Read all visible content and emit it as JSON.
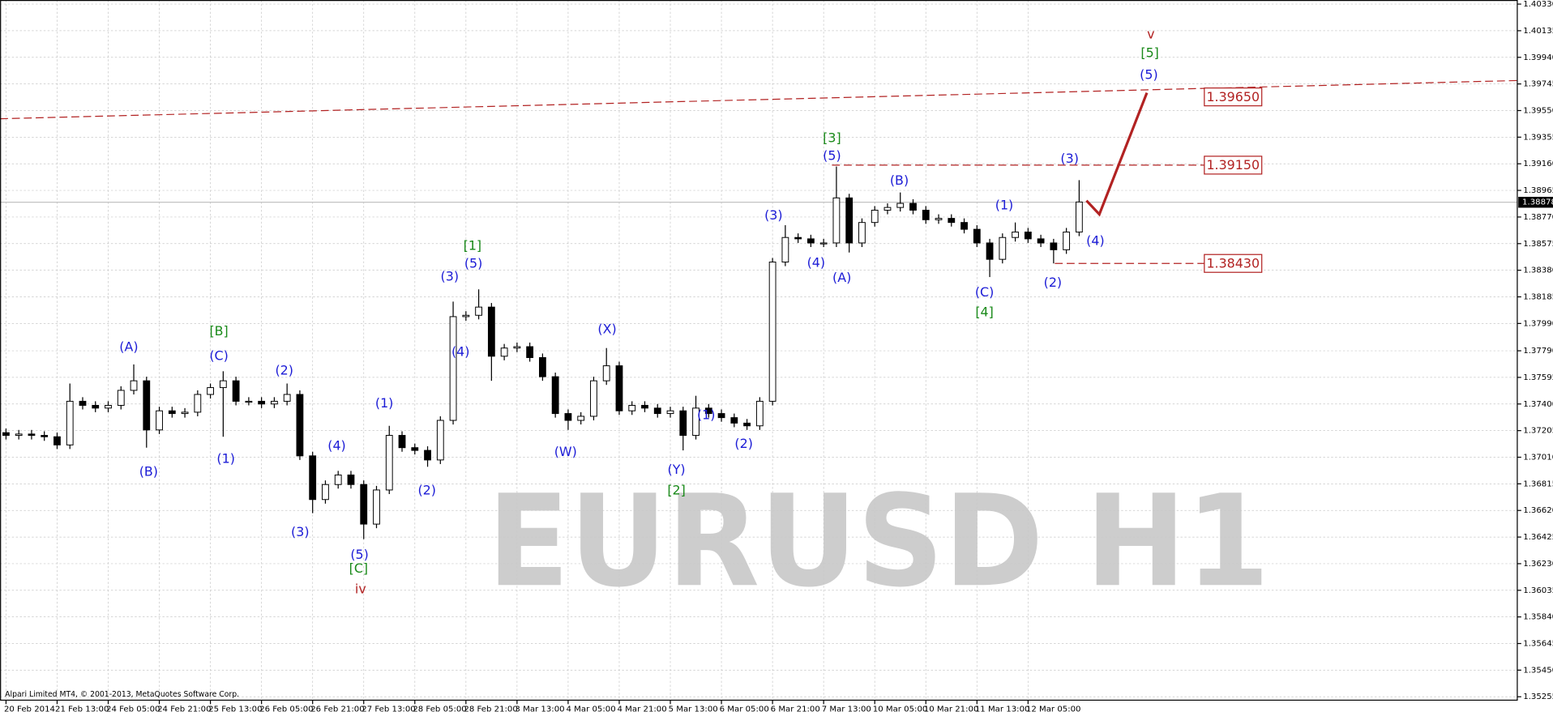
{
  "chart_data": {
    "type": "candlestick",
    "watermark": "EURUSD H1",
    "copyright": "Alpari Limited MT4, © 2001-2013, MetaQuotes Software Corp.",
    "ylim": [
      1.3523,
      1.4036
    ],
    "yticks": [
      {
        "value": 1.4033,
        "label": "1.40330"
      },
      1.40135,
      {
        "value": 1.3994,
        "label": "1.39940"
      },
      1.39745,
      {
        "value": 1.3955,
        "label": "1.39550"
      },
      1.39355,
      {
        "value": 1.3916,
        "label": "1.39160"
      },
      1.38965,
      {
        "value": 1.3877,
        "label": "1.38770"
      },
      1.38575,
      {
        "value": 1.3838,
        "label": "1.38380"
      },
      1.38185,
      {
        "value": 1.3799,
        "label": "1.37990"
      },
      {
        "value": 1.3779,
        "label": "1.37790"
      },
      1.37595,
      {
        "value": 1.374,
        "label": "1.37400"
      },
      1.37205,
      {
        "value": 1.3701,
        "label": "1.37010"
      },
      1.36815,
      {
        "value": 1.3662,
        "label": "1.36620"
      },
      1.36425,
      {
        "value": 1.3623,
        "label": "1.36230"
      },
      1.36035,
      {
        "value": 1.3584,
        "label": "1.35840"
      },
      1.35645,
      {
        "value": 1.3545,
        "label": "1.35450"
      },
      1.35255
    ],
    "grid": true,
    "up_color": "#ffffff",
    "down_color": "#000000",
    "categories": [
      "20 Feb 2014",
      null,
      null,
      null,
      "21 Feb 13:00",
      null,
      null,
      null,
      "24 Feb 05:00",
      null,
      null,
      null,
      "24 Feb 21:00",
      null,
      null,
      null,
      "25 Feb 13:00",
      null,
      null,
      null,
      "26 Feb 05:00",
      null,
      null,
      null,
      "26 Feb 21:00",
      null,
      null,
      null,
      "27 Feb 13:00",
      null,
      null,
      null,
      "28 Feb 05:00",
      null,
      null,
      null,
      "28 Feb 21:00",
      null,
      null,
      null,
      "3 Mar 13:00",
      null,
      null,
      null,
      "4 Mar 05:00",
      null,
      null,
      null,
      "4 Mar 21:00",
      null,
      null,
      null,
      "5 Mar 13:00",
      null,
      null,
      null,
      "6 Mar 05:00",
      null,
      null,
      null,
      "6 Mar 21:00",
      null,
      null,
      null,
      "7 Mar 13:00",
      null,
      null,
      null,
      "10 Mar 05:00",
      null,
      null,
      null,
      "10 Mar 21:00",
      null,
      null,
      null,
      "11 Mar 13:00",
      null,
      null,
      null,
      "12 Mar 05:00",
      null,
      null,
      null,
      null
    ],
    "ohlc": [
      [
        1.3719,
        1.3722,
        1.3714,
        1.3717
      ],
      [
        1.3717,
        1.3721,
        1.3714,
        1.3718
      ],
      [
        1.3718,
        1.3721,
        1.3714,
        1.3717
      ],
      [
        1.3717,
        1.372,
        1.3713,
        1.3716
      ],
      [
        1.3716,
        1.3719,
        1.3707,
        1.371
      ],
      [
        1.371,
        1.3755,
        1.3707,
        1.3742
      ],
      [
        1.3742,
        1.3745,
        1.3736,
        1.3739
      ],
      [
        1.3739,
        1.3742,
        1.3734,
        1.3737
      ],
      [
        1.3737,
        1.3742,
        1.3734,
        1.3739
      ],
      [
        1.3739,
        1.3753,
        1.3736,
        1.375
      ],
      [
        1.375,
        1.3769,
        1.3747,
        1.3757
      ],
      [
        1.3757,
        1.376,
        1.3708,
        1.3721
      ],
      [
        1.3721,
        1.3738,
        1.3718,
        1.3735
      ],
      [
        1.3735,
        1.3738,
        1.373,
        1.3733
      ],
      [
        1.3733,
        1.3737,
        1.373,
        1.3734
      ],
      [
        1.3734,
        1.375,
        1.3731,
        1.3747
      ],
      [
        1.3747,
        1.3755,
        1.3744,
        1.3752
      ],
      [
        1.3752,
        1.3764,
        1.3716,
        1.3757
      ],
      [
        1.3757,
        1.376,
        1.3739,
        1.3742
      ],
      [
        1.3742,
        1.3745,
        1.3739,
        1.3742
      ],
      [
        1.3742,
        1.3745,
        1.3737,
        1.374
      ],
      [
        1.374,
        1.3745,
        1.3737,
        1.3742
      ],
      [
        1.3742,
        1.3755,
        1.3739,
        1.3747
      ],
      [
        1.3747,
        1.375,
        1.3699,
        1.3702
      ],
      [
        1.3702,
        1.3705,
        1.366,
        1.367
      ],
      [
        1.367,
        1.3684,
        1.3667,
        1.3681
      ],
      [
        1.3681,
        1.3691,
        1.3678,
        1.3688
      ],
      [
        1.3688,
        1.3691,
        1.3678,
        1.3681
      ],
      [
        1.3681,
        1.3684,
        1.3641,
        1.3652
      ],
      [
        1.3652,
        1.368,
        1.3649,
        1.3677
      ],
      [
        1.3677,
        1.3724,
        1.3674,
        1.3717
      ],
      [
        1.3717,
        1.372,
        1.3705,
        1.3708
      ],
      [
        1.3708,
        1.3711,
        1.3703,
        1.3706
      ],
      [
        1.3706,
        1.3709,
        1.3694,
        1.3699
      ],
      [
        1.3699,
        1.3731,
        1.3696,
        1.3728
      ],
      [
        1.3728,
        1.3815,
        1.3725,
        1.3804
      ],
      [
        1.3804,
        1.3808,
        1.3801,
        1.3805
      ],
      [
        1.3805,
        1.3824,
        1.3802,
        1.3811
      ],
      [
        1.3811,
        1.3814,
        1.3757,
        1.3775
      ],
      [
        1.3775,
        1.3784,
        1.3772,
        1.3781
      ],
      [
        1.3781,
        1.3785,
        1.3778,
        1.3782
      ],
      [
        1.3782,
        1.3785,
        1.3771,
        1.3774
      ],
      [
        1.3774,
        1.3777,
        1.3757,
        1.376
      ],
      [
        1.376,
        1.3763,
        1.373,
        1.3733
      ],
      [
        1.3733,
        1.3736,
        1.3721,
        1.3728
      ],
      [
        1.3728,
        1.3734,
        1.3725,
        1.3731
      ],
      [
        1.3731,
        1.376,
        1.3728,
        1.3757
      ],
      [
        1.3757,
        1.3781,
        1.3754,
        1.3768
      ],
      [
        1.3768,
        1.3771,
        1.3732,
        1.3735
      ],
      [
        1.3735,
        1.3742,
        1.3732,
        1.3739
      ],
      [
        1.3739,
        1.3742,
        1.3734,
        1.3737
      ],
      [
        1.3737,
        1.374,
        1.373,
        1.3733
      ],
      [
        1.3733,
        1.3738,
        1.373,
        1.3735
      ],
      [
        1.3735,
        1.3738,
        1.3706,
        1.3717
      ],
      [
        1.3717,
        1.3746,
        1.3714,
        1.3737
      ],
      [
        1.3737,
        1.374,
        1.373,
        1.3733
      ],
      [
        1.3733,
        1.3736,
        1.3727,
        1.373
      ],
      [
        1.373,
        1.3733,
        1.3723,
        1.3726
      ],
      [
        1.3726,
        1.3729,
        1.3721,
        1.3724
      ],
      [
        1.3724,
        1.3745,
        1.3721,
        1.3742
      ],
      [
        1.3742,
        1.3847,
        1.3739,
        1.3844
      ],
      [
        1.3844,
        1.3871,
        1.3841,
        1.3862
      ],
      [
        1.3862,
        1.3865,
        1.3858,
        1.3861
      ],
      [
        1.3861,
        1.3864,
        1.3855,
        1.3858
      ],
      [
        1.3858,
        1.3861,
        1.3855,
        1.3858
      ],
      [
        1.3858,
        1.3914,
        1.3855,
        1.3891
      ],
      [
        1.3891,
        1.3894,
        1.3851,
        1.3858
      ],
      [
        1.3858,
        1.3876,
        1.3855,
        1.3873
      ],
      [
        1.3873,
        1.3885,
        1.387,
        1.3882
      ],
      [
        1.3882,
        1.3887,
        1.3879,
        1.3884
      ],
      [
        1.3884,
        1.3895,
        1.3881,
        1.3887
      ],
      [
        1.3887,
        1.389,
        1.3879,
        1.3882
      ],
      [
        1.3882,
        1.3885,
        1.3872,
        1.3875
      ],
      [
        1.3875,
        1.3879,
        1.3872,
        1.3876
      ],
      [
        1.3876,
        1.3879,
        1.387,
        1.3873
      ],
      [
        1.3873,
        1.3876,
        1.3865,
        1.3868
      ],
      [
        1.3868,
        1.3871,
        1.3855,
        1.3858
      ],
      [
        1.3858,
        1.3861,
        1.3833,
        1.3846
      ],
      [
        1.3846,
        1.3865,
        1.3843,
        1.3862
      ],
      [
        1.3862,
        1.3873,
        1.3859,
        1.3866
      ],
      [
        1.3866,
        1.3869,
        1.3858,
        1.3861
      ],
      [
        1.3861,
        1.3864,
        1.3855,
        1.3858
      ],
      [
        1.3858,
        1.3861,
        1.3843,
        1.3853
      ],
      [
        1.3853,
        1.3869,
        1.385,
        1.3866
      ],
      [
        1.3866,
        1.3904,
        1.3863,
        1.3888
      ]
    ],
    "last_price": 1.38878,
    "levels": [
      {
        "value": 1.3965,
        "label": "1.39650"
      },
      {
        "value": 1.3915,
        "label": "1.39150"
      },
      {
        "value": 1.3843,
        "label": "1.38430"
      }
    ],
    "level_color": "#b22222",
    "trendline": [
      1.3949,
      1.3977
    ],
    "forecast": [
      1.3889,
      1.3879,
      1.3968
    ],
    "annotations": [
      {
        "text": "(A)",
        "color": "#1c1cd6"
      },
      {
        "text": "(B)",
        "color": "#1c1cd6"
      },
      {
        "text": "[B]",
        "color": "#1a8a1a"
      },
      {
        "text": "(C)",
        "color": "#1c1cd6"
      },
      {
        "text": "(1)",
        "color": "#1c1cd6"
      },
      {
        "text": "(2)",
        "color": "#1c1cd6"
      },
      {
        "text": "(3)",
        "color": "#1c1cd6"
      },
      {
        "text": "(4)",
        "color": "#1c1cd6"
      },
      {
        "text": "(5)",
        "color": "#1c1cd6"
      },
      {
        "text": "[C]",
        "color": "#1a8a1a"
      },
      {
        "text": "iv",
        "color": "#b22222"
      },
      {
        "text": "(1)",
        "color": "#1c1cd6"
      },
      {
        "text": "(2)",
        "color": "#1c1cd6"
      },
      {
        "text": "(3)",
        "color": "#1c1cd6"
      },
      {
        "text": "[1]",
        "color": "#1a8a1a"
      },
      {
        "text": "(5)",
        "color": "#1c1cd6"
      },
      {
        "text": "(4)",
        "color": "#1c1cd6"
      },
      {
        "text": "(X)",
        "color": "#1c1cd6"
      },
      {
        "text": "(W)",
        "color": "#1c1cd6"
      },
      {
        "text": "(1)",
        "color": "#1c1cd6"
      },
      {
        "text": "(Y)",
        "color": "#1c1cd6"
      },
      {
        "text": "[2]",
        "color": "#1a8a1a"
      },
      {
        "text": "(2)",
        "color": "#1c1cd6"
      },
      {
        "text": "(3)",
        "color": "#1c1cd6"
      },
      {
        "text": "(4)",
        "color": "#1c1cd6"
      },
      {
        "text": "[3]",
        "color": "#1a8a1a"
      },
      {
        "text": "(5)",
        "color": "#1c1cd6"
      },
      {
        "text": "(A)",
        "color": "#1c1cd6"
      },
      {
        "text": "(B)",
        "color": "#1c1cd6"
      },
      {
        "text": "(1)",
        "color": "#1c1cd6"
      },
      {
        "text": "(C)",
        "color": "#1c1cd6"
      },
      {
        "text": "[4]",
        "color": "#1a8a1a"
      },
      {
        "text": "(2)",
        "color": "#1c1cd6"
      },
      {
        "text": "(3)",
        "color": "#1c1cd6"
      },
      {
        "text": "(4)",
        "color": "#1c1cd6"
      },
      {
        "text": "v",
        "color": "#b22222"
      },
      {
        "text": "[5]",
        "color": "#1a8a1a"
      },
      {
        "text": "(5)",
        "color": "#1c1cd6"
      }
    ]
  }
}
